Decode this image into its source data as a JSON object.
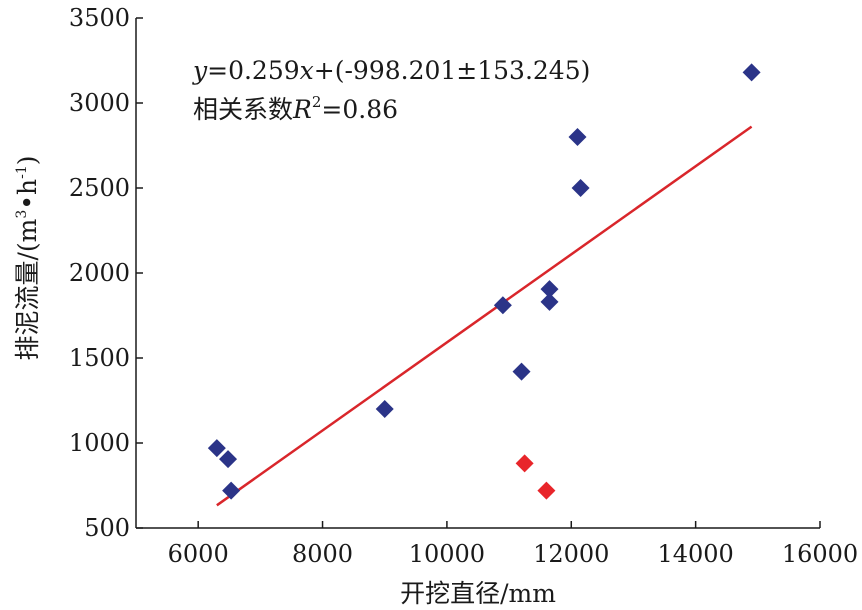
{
  "chart_data": {
    "type": "scatter",
    "title": "",
    "xlabel": "开挖直径/mm",
    "ylabel_main": "排泥流量/(m",
    "ylabel_sup1": "3",
    "ylabel_mid": "•h",
    "ylabel_sup2": "-1",
    "ylabel_end": ")",
    "xlim": [
      5000,
      16000
    ],
    "ylim": [
      500,
      3500
    ],
    "xticks": [
      6000,
      8000,
      10000,
      12000,
      14000,
      16000
    ],
    "yticks": [
      500,
      1000,
      1500,
      2000,
      2500,
      3000,
      3500
    ],
    "grid": false,
    "marker": "diamond",
    "series": [
      {
        "color": "#2b3488",
        "points": [
          {
            "x": 6300,
            "y": 970
          },
          {
            "x": 6480,
            "y": 905
          },
          {
            "x": 6530,
            "y": 720
          },
          {
            "x": 9000,
            "y": 1200
          },
          {
            "x": 10900,
            "y": 1810
          },
          {
            "x": 11200,
            "y": 1420
          },
          {
            "x": 11650,
            "y": 1830
          },
          {
            "x": 11650,
            "y": 1905
          },
          {
            "x": 12100,
            "y": 2800
          },
          {
            "x": 12150,
            "y": 2500
          },
          {
            "x": 14900,
            "y": 3180
          }
        ]
      },
      {
        "color": "#e8252a",
        "points": [
          {
            "x": 11250,
            "y": 880
          },
          {
            "x": 11600,
            "y": 720
          }
        ]
      }
    ],
    "fit_line": {
      "color": "#d9262b",
      "slope": 0.259,
      "intercept": -998.201,
      "x_start": 6300,
      "x_end": 14900
    },
    "annotations": {
      "line1_y": "y",
      "line1_eq": "=0.259",
      "line1_x": "x",
      "line1_rest": "+(-998.201±153.245)",
      "line2_a": "相关系数",
      "line2_R": "R",
      "line2_sup": "2",
      "line2_val": "=0.86"
    }
  }
}
